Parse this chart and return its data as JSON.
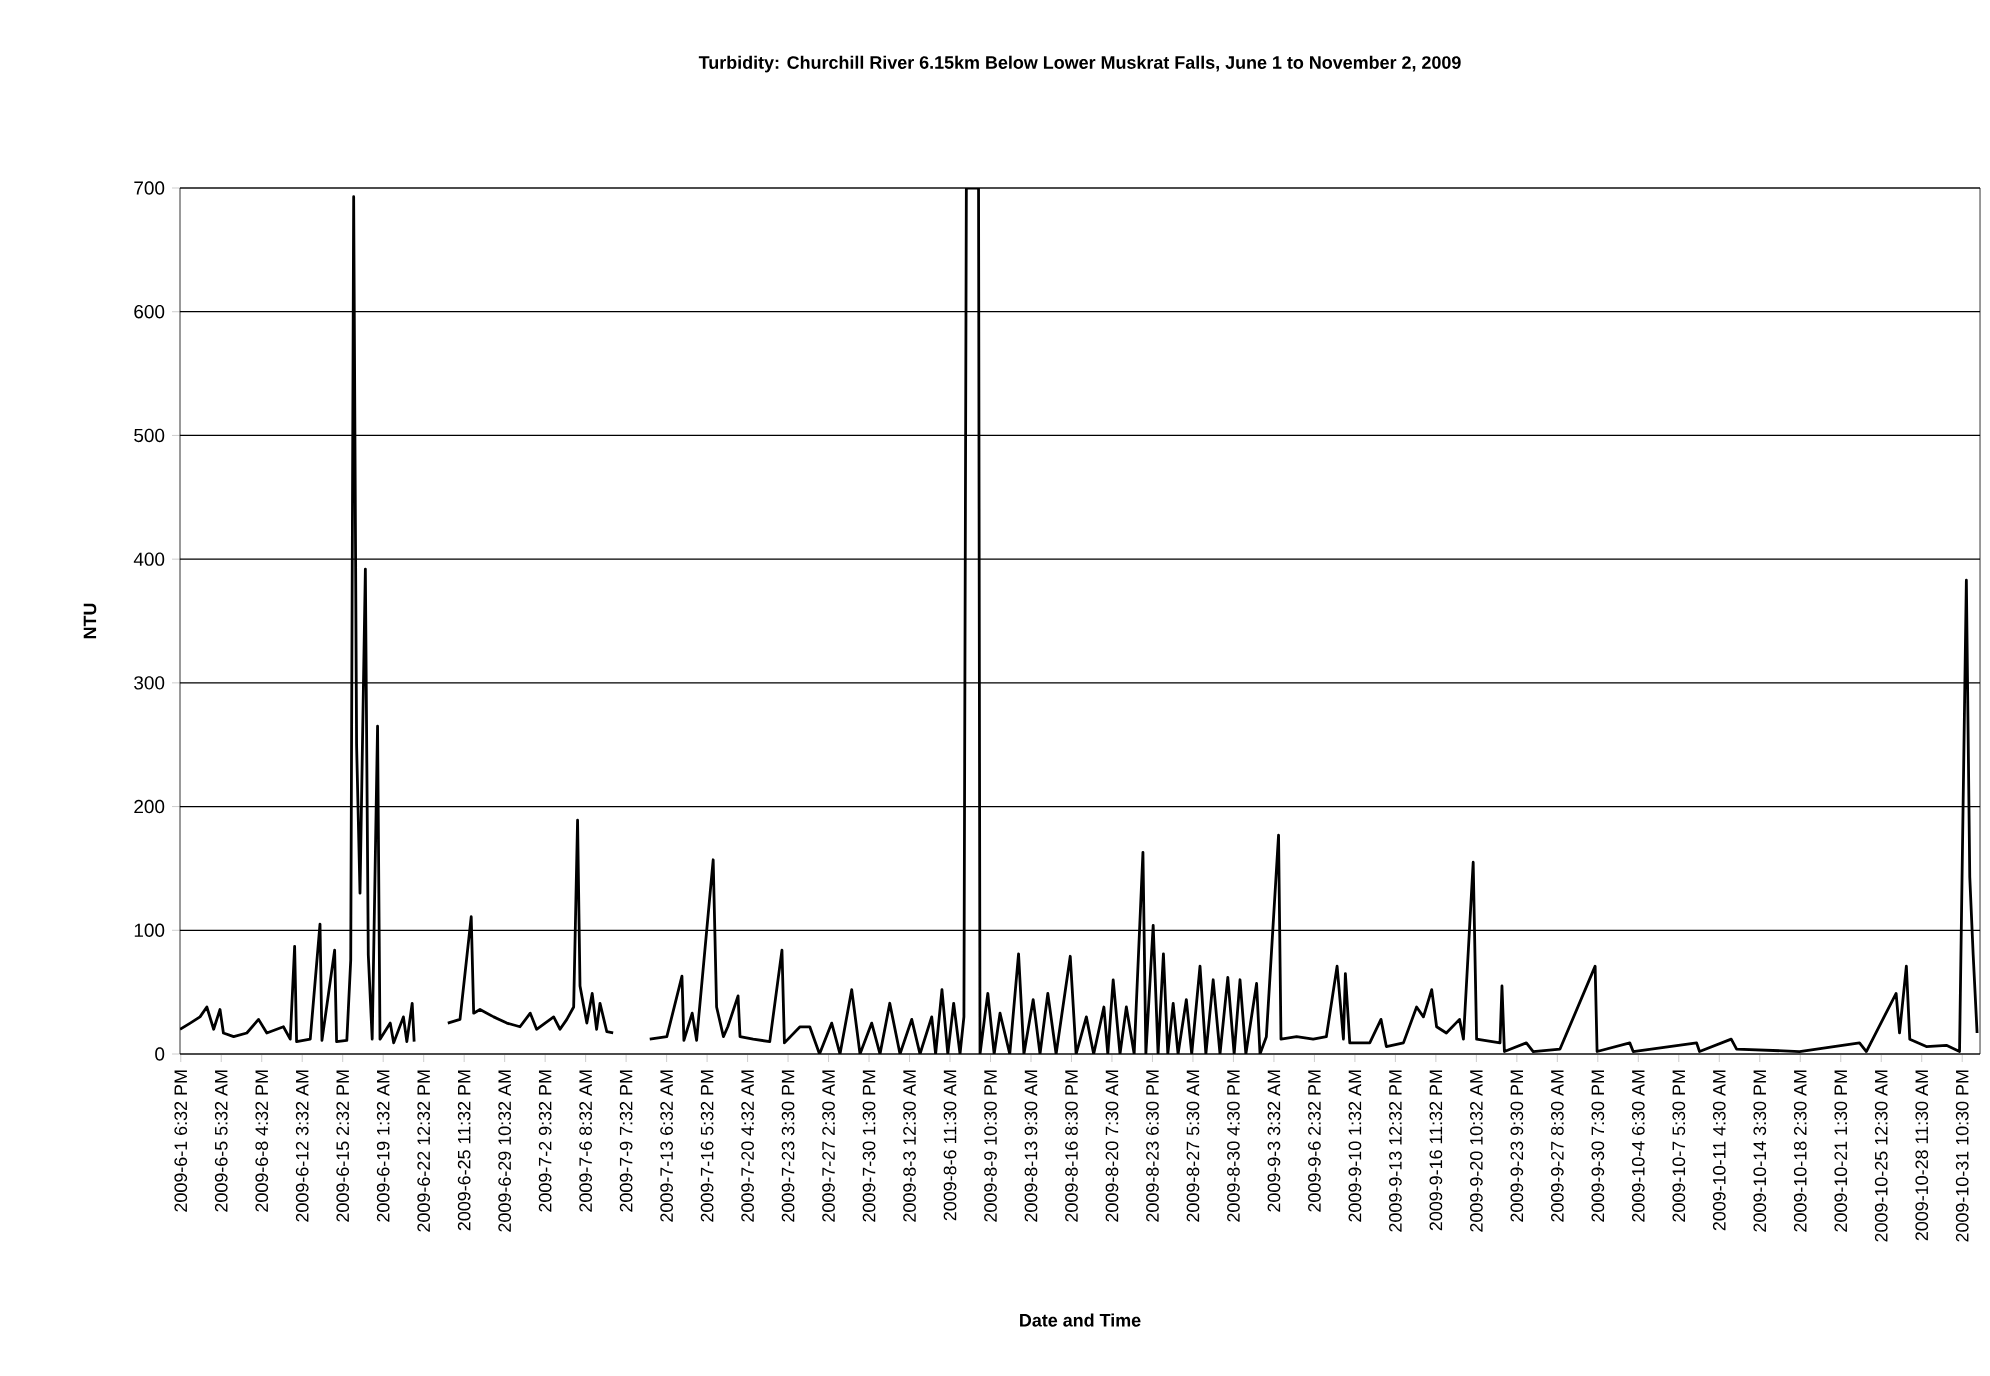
{
  "chart_data": {
    "type": "line",
    "title": "Turbidity: Churchill River 6.15km Below Lower Muskrat Falls, June 1 to November 2, 2009",
    "xlabel": "Date and Time",
    "ylabel": "NTU",
    "x": [
      "2009-06-01T17:00",
      "2009-06-02T14:00",
      "2009-06-03T10:00",
      "2009-06-04T00:00",
      "2009-06-04T14:00",
      "2009-06-05T03:00",
      "2009-06-05T10:00",
      "2009-06-06T07:00",
      "2009-06-07T10:00",
      "2009-06-08T10:00",
      "2009-06-09T03:00",
      "2009-06-10T13:00",
      "2009-06-11T03:00",
      "2009-06-11T12:00",
      "2009-06-11T16:00",
      "2009-06-12T20:00",
      "2009-06-13T16:00",
      "2009-06-13T20:00",
      "2009-06-14T22:00",
      "2009-06-15T02:00",
      "2009-06-15T23:00",
      "2009-06-16T07:00",
      "2009-06-16T13:00",
      "2009-06-16T19:00",
      "2009-06-17T02:00",
      "2009-06-17T13:00",
      "2009-06-17T19:00",
      "2009-06-18T03:00",
      "2009-06-18T14:00",
      "2009-06-18T19:00",
      "2009-06-19T16:00",
      "2009-06-19T23:00",
      "2009-06-20T19:00",
      "2009-06-21T02:00",
      "2009-06-21T13:00",
      "2009-06-21T17:00",
      "2009-06-23T00:00",
      "2009-06-24T14:00",
      "2009-06-25T15:00",
      "2009-06-26T14:00",
      "2009-06-26T19:00",
      "2009-06-27T08:00",
      "2009-06-28T12:00",
      "2009-06-29T15:00",
      "2009-06-30T18:00",
      "2009-07-01T15:00",
      "2009-07-02T04:00",
      "2009-07-03T15:00",
      "2009-07-04T04:00",
      "2009-07-04T18:00",
      "2009-07-05T08:00",
      "2009-07-05T16:00",
      "2009-07-05T21:00",
      "2009-07-06T11:00",
      "2009-07-06T22:00",
      "2009-07-07T07:00",
      "2009-07-07T14:00",
      "2009-07-08T04:00",
      "2009-07-08T17:00",
      "2009-07-10T12:00",
      "2009-07-11T20:00",
      "2009-07-13T07:00",
      "2009-07-14T14:00",
      "2009-07-14T18:00",
      "2009-07-15T11:00",
      "2009-07-15T20:00",
      "2009-07-17T06:00",
      "2009-07-17T13:00",
      "2009-07-18T03:00",
      "2009-07-18T12:00",
      "2009-07-19T09:00",
      "2009-07-19T13:00",
      "2009-07-20T16:00",
      "2009-07-22T02:00",
      "2009-07-23T03:00",
      "2009-07-23T08:00",
      "2009-07-24T16:00",
      "2009-07-25T12:00",
      "2009-07-26T08:00",
      "2009-07-27T09:00",
      "2009-07-28T02:00",
      "2009-07-29T02:00",
      "2009-07-29T19:00",
      "2009-07-30T19:00",
      "2009-07-31T12:00",
      "2009-08-01T08:00",
      "2009-08-02T05:00",
      "2009-08-03T05:00",
      "2009-08-03T22:00",
      "2009-08-04T22:00",
      "2009-08-05T06:00",
      "2009-08-05T19:00",
      "2009-08-06T07:00",
      "2009-08-06T19:00",
      "2009-08-07T08:00",
      "2009-08-07T16:00",
      "2009-08-07T21:00",
      "2009-08-08T22:00",
      "2009-08-09T01:00",
      "2009-08-09T17:00",
      "2009-08-10T06:00",
      "2009-08-10T18:00",
      "2009-08-11T14:00",
      "2009-08-12T08:00",
      "2009-08-12T19:00",
      "2009-08-13T14:00",
      "2009-08-14T04:00",
      "2009-08-14T20:00",
      "2009-08-15T13:00",
      "2009-08-16T18:00",
      "2009-08-17T06:00",
      "2009-08-18T03:00",
      "2009-08-18T18:00",
      "2009-08-19T15:00",
      "2009-08-19T23:00",
      "2009-08-20T10:00",
      "2009-08-21T00:00",
      "2009-08-21T13:00",
      "2009-08-22T05:00",
      "2009-08-22T23:00",
      "2009-08-23T05:00",
      "2009-08-23T20:00",
      "2009-08-24T06:00",
      "2009-08-24T17:00",
      "2009-08-25T02:00",
      "2009-08-25T13:00",
      "2009-08-25T23:00",
      "2009-08-26T16:00",
      "2009-08-27T03:00",
      "2009-08-27T20:00",
      "2009-08-28T08:00",
      "2009-08-28T23:00",
      "2009-08-29T13:00",
      "2009-08-30T05:00",
      "2009-08-30T18:00",
      "2009-08-31T06:00",
      "2009-08-31T18:00",
      "2009-09-01T16:00",
      "2009-09-01T23:00",
      "2009-09-02T12:00",
      "2009-09-03T13:00",
      "2009-09-03T18:00",
      "2009-09-05T02:00",
      "2009-09-06T12:00",
      "2009-09-07T15:00",
      "2009-09-08T13:00",
      "2009-09-09T02:00",
      "2009-09-09T06:00",
      "2009-09-09T15:00",
      "2009-09-11T08:00",
      "2009-09-12T07:00",
      "2009-09-12T18:00",
      "2009-09-14T05:00",
      "2009-09-15T08:00",
      "2009-09-15T22:00",
      "2009-09-16T15:00",
      "2009-09-17T01:00",
      "2009-09-17T21:00",
      "2009-09-19T00:00",
      "2009-09-19T08:00",
      "2009-09-20T04:00",
      "2009-09-20T11:00",
      "2009-09-22T11:00",
      "2009-09-22T15:00",
      "2009-09-22T20:00",
      "2009-09-24T17:00",
      "2009-09-25T07:00",
      "2009-09-27T14:00",
      "2009-09-30T14:00",
      "2009-09-30T18:00",
      "2009-10-03T13:00",
      "2009-10-03T20:00",
      "2009-10-09T06:00",
      "2009-10-09T12:00",
      "2009-10-12T05:00",
      "2009-10-12T16:00",
      "2009-10-18T01:00",
      "2009-10-23T04:00",
      "2009-10-23T18:00",
      "2009-10-26T07:00",
      "2009-10-26T14:00",
      "2009-10-27T04:00",
      "2009-10-27T11:00",
      "2009-10-28T21:00",
      "2009-10-30T14:00",
      "2009-10-31T17:00",
      "2009-11-01T07:00",
      "2009-11-01T14:00",
      "2009-11-01T21:00",
      "2009-11-02T05:00"
    ],
    "series": [
      {
        "color": "#000000",
        "values": [
          20,
          25,
          30,
          38,
          20,
          36,
          17,
          14,
          17,
          28,
          17,
          22,
          12,
          87,
          10,
          12,
          105,
          11,
          84,
          10,
          11,
          76,
          693,
          250,
          130,
          392,
          80,
          12,
          265,
          12,
          25,
          9,
          30,
          10,
          41,
          10,
          null,
          25,
          28,
          111,
          33,
          36,
          30,
          25,
          22,
          33,
          20,
          30,
          20,
          28,
          38,
          189,
          55,
          25,
          49,
          20,
          41,
          18,
          17,
          null,
          12,
          14,
          63,
          11,
          33,
          11,
          157,
          38,
          14,
          22,
          47,
          14,
          12,
          10,
          84,
          9,
          22,
          22,
          0,
          25,
          0,
          52,
          0,
          25,
          0,
          41,
          0,
          28,
          0,
          30,
          0,
          52,
          0,
          41,
          0,
          30,
          700,
          700,
          0,
          49,
          0,
          33,
          0,
          81,
          0,
          44,
          0,
          49,
          0,
          79,
          0,
          30,
          0,
          38,
          0,
          60,
          0,
          38,
          0,
          163,
          0,
          104,
          0,
          81,
          0,
          41,
          0,
          44,
          0,
          71,
          0,
          60,
          0,
          62,
          0,
          60,
          0,
          57,
          0,
          14,
          177,
          12,
          14,
          12,
          14,
          71,
          12,
          65,
          9,
          9,
          28,
          6,
          9,
          38,
          30,
          52,
          22,
          17,
          28,
          12,
          155,
          12,
          9,
          55,
          2,
          9,
          2,
          4,
          71,
          2,
          9,
          2,
          9,
          2,
          12,
          4,
          2,
          9,
          2,
          49,
          17,
          71,
          12,
          6,
          7,
          2,
          383,
          143,
          80,
          17
        ]
      }
    ],
    "xlim": [
      "2009-06-01T17:00",
      "2009-11-02T11:00"
    ],
    "ylim": [
      0,
      700
    ],
    "yticks": [
      0,
      100,
      200,
      300,
      400,
      500,
      600,
      700
    ],
    "xticks": [
      {
        "value": "2009-06-01T18:32",
        "label": "2009-6-1 6:32 PM"
      },
      {
        "value": "2009-06-05T05:32",
        "label": "2009-6-5 5:32 AM"
      },
      {
        "value": "2009-06-08T16:32",
        "label": "2009-6-8 4:32 PM"
      },
      {
        "value": "2009-06-12T03:32",
        "label": "2009-6-12 3:32 AM"
      },
      {
        "value": "2009-06-15T14:32",
        "label": "2009-6-15 2:32 PM"
      },
      {
        "value": "2009-06-19T01:32",
        "label": "2009-6-19 1:32 AM"
      },
      {
        "value": "2009-06-22T12:32",
        "label": "2009-6-22 12:32 PM"
      },
      {
        "value": "2009-06-25T23:32",
        "label": "2009-6-25 11:32 PM"
      },
      {
        "value": "2009-06-29T10:32",
        "label": "2009-6-29 10:32 AM"
      },
      {
        "value": "2009-07-02T21:32",
        "label": "2009-7-2 9:32 PM"
      },
      {
        "value": "2009-07-06T08:32",
        "label": "2009-7-6 8:32 AM"
      },
      {
        "value": "2009-07-09T19:32",
        "label": "2009-7-9 7:32 PM"
      },
      {
        "value": "2009-07-13T06:32",
        "label": "2009-7-13 6:32 AM"
      },
      {
        "value": "2009-07-16T17:32",
        "label": "2009-7-16 5:32 PM"
      },
      {
        "value": "2009-07-20T04:32",
        "label": "2009-7-20 4:32 AM"
      },
      {
        "value": "2009-07-23T15:30",
        "label": "2009-7-23 3:30 PM"
      },
      {
        "value": "2009-07-27T02:30",
        "label": "2009-7-27 2:30 AM"
      },
      {
        "value": "2009-07-30T13:30",
        "label": "2009-7-30 1:30 PM"
      },
      {
        "value": "2009-08-03T00:30",
        "label": "2009-8-3 12:30 AM"
      },
      {
        "value": "2009-08-06T11:30",
        "label": "2009-8-6 11:30 AM"
      },
      {
        "value": "2009-08-09T22:30",
        "label": "2009-8-9 10:30 PM"
      },
      {
        "value": "2009-08-13T09:30",
        "label": "2009-8-13 9:30 AM"
      },
      {
        "value": "2009-08-16T20:30",
        "label": "2009-8-16 8:30 PM"
      },
      {
        "value": "2009-08-20T07:30",
        "label": "2009-8-20 7:30 AM"
      },
      {
        "value": "2009-08-23T18:30",
        "label": "2009-8-23 6:30 PM"
      },
      {
        "value": "2009-08-27T05:30",
        "label": "2009-8-27 5:30 AM"
      },
      {
        "value": "2009-08-30T16:30",
        "label": "2009-8-30 4:30 PM"
      },
      {
        "value": "2009-09-03T03:32",
        "label": "2009-9-3 3:32 AM"
      },
      {
        "value": "2009-09-06T14:32",
        "label": "2009-9-6 2:32 PM"
      },
      {
        "value": "2009-09-10T01:32",
        "label": "2009-9-10 1:32 AM"
      },
      {
        "value": "2009-09-13T12:32",
        "label": "2009-9-13 12:32 PM"
      },
      {
        "value": "2009-09-16T23:32",
        "label": "2009-9-16 11:32 PM"
      },
      {
        "value": "2009-09-20T10:32",
        "label": "2009-9-20 10:32 AM"
      },
      {
        "value": "2009-09-23T21:30",
        "label": "2009-9-23 9:30 PM"
      },
      {
        "value": "2009-09-27T08:30",
        "label": "2009-9-27 8:30 AM"
      },
      {
        "value": "2009-09-30T19:30",
        "label": "2009-9-30 7:30 PM"
      },
      {
        "value": "2009-10-04T06:30",
        "label": "2009-10-4 6:30 AM"
      },
      {
        "value": "2009-10-07T17:30",
        "label": "2009-10-7 5:30 PM"
      },
      {
        "value": "2009-10-11T04:30",
        "label": "2009-10-11 4:30 AM"
      },
      {
        "value": "2009-10-14T15:30",
        "label": "2009-10-14 3:30 PM"
      },
      {
        "value": "2009-10-18T02:30",
        "label": "2009-10-18 2:30 AM"
      },
      {
        "value": "2009-10-21T13:30",
        "label": "2009-10-21 1:30 PM"
      },
      {
        "value": "2009-10-25T00:30",
        "label": "2009-10-25 12:30 AM"
      },
      {
        "value": "2009-10-28T11:30",
        "label": "2009-10-28 11:30 AM"
      },
      {
        "value": "2009-10-31T22:30",
        "label": "2009-10-31 10:30 PM"
      }
    ],
    "grid": "y",
    "marker": "none"
  }
}
